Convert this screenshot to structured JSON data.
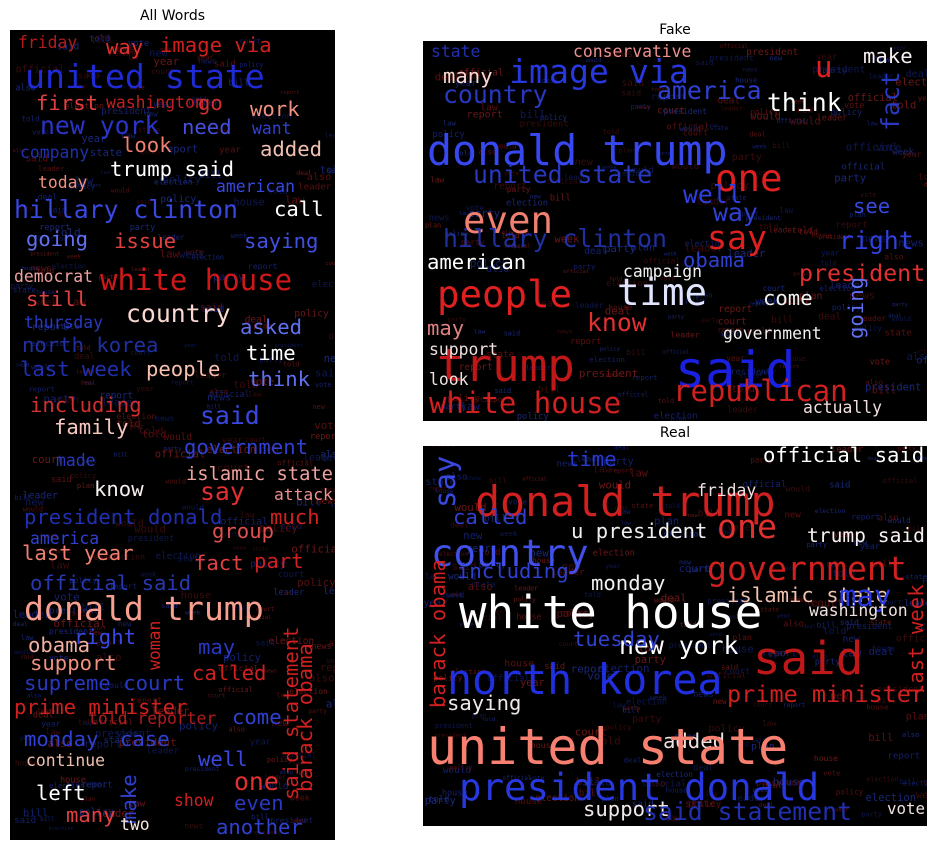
{
  "chart_data": [
    {
      "type": "wordcloud",
      "title": "All Words",
      "words": [
        {
          "text": "friday",
          "color": "#b01c1c",
          "weight": 2
        },
        {
          "text": "way",
          "color": "#e03030",
          "weight": 3
        },
        {
          "text": "image via",
          "color": "#d02020",
          "weight": 3
        },
        {
          "text": "united state",
          "color": "#1f2bd6",
          "weight": 6
        },
        {
          "text": "first",
          "color": "#e04040",
          "weight": 3
        },
        {
          "text": "washington",
          "color": "#c02020",
          "weight": 2
        },
        {
          "text": "go",
          "color": "#d03030",
          "weight": 3
        },
        {
          "text": "new york",
          "color": "#2a35c8",
          "weight": 4
        },
        {
          "text": "need",
          "color": "#4450e0",
          "weight": 3
        },
        {
          "text": "work",
          "color": "#f09080",
          "weight": 3
        },
        {
          "text": "want",
          "color": "#3040d0",
          "weight": 2
        },
        {
          "text": "company",
          "color": "#2030b0",
          "weight": 2
        },
        {
          "text": "look",
          "color": "#f08070",
          "weight": 3
        },
        {
          "text": "added",
          "color": "#f0c0b0",
          "weight": 3
        },
        {
          "text": "trump said",
          "color": "#ffffff",
          "weight": 3
        },
        {
          "text": "today",
          "color": "#f09080",
          "weight": 2
        },
        {
          "text": "american",
          "color": "#3848e0",
          "weight": 2
        },
        {
          "text": "hillary clinton",
          "color": "#3848e0",
          "weight": 4
        },
        {
          "text": "call",
          "color": "#ffffff",
          "weight": 3
        },
        {
          "text": "going",
          "color": "#6070f0",
          "weight": 3
        },
        {
          "text": "issue",
          "color": "#e04040",
          "weight": 3
        },
        {
          "text": "saying",
          "color": "#4050e0",
          "weight": 3
        },
        {
          "text": "democrat",
          "color": "#f0a0a0",
          "weight": 2
        },
        {
          "text": "white house",
          "color": "#d01818",
          "weight": 5
        },
        {
          "text": "still",
          "color": "#e04040",
          "weight": 3
        },
        {
          "text": "country",
          "color": "#f8d8d0",
          "weight": 4
        },
        {
          "text": "thursday",
          "color": "#2838c0",
          "weight": 2
        },
        {
          "text": "asked",
          "color": "#6070f0",
          "weight": 3
        },
        {
          "text": "north korea",
          "color": "#2030a0",
          "weight": 3
        },
        {
          "text": "time",
          "color": "#ffffff",
          "weight": 3
        },
        {
          "text": "people",
          "color": "#f8c0b0",
          "weight": 3
        },
        {
          "text": "think",
          "color": "#6070f0",
          "weight": 3
        },
        {
          "text": "last week",
          "color": "#2030b0",
          "weight": 3
        },
        {
          "text": "including",
          "color": "#d03030",
          "weight": 3
        },
        {
          "text": "said",
          "color": "#3848e0",
          "weight": 4
        },
        {
          "text": "family",
          "color": "#f8c8c0",
          "weight": 3
        },
        {
          "text": "government",
          "color": "#3040d0",
          "weight": 3
        },
        {
          "text": "made",
          "color": "#2838c0",
          "weight": 2
        },
        {
          "text": "islamic state",
          "color": "#f0a0a0",
          "weight": 3
        },
        {
          "text": "know",
          "color": "#f8f0f0",
          "weight": 3
        },
        {
          "text": "say",
          "color": "#e03030",
          "weight": 4
        },
        {
          "text": "attack",
          "color": "#f09090",
          "weight": 2
        },
        {
          "text": "president donald",
          "color": "#2030b0",
          "weight": 3
        },
        {
          "text": "group",
          "color": "#e05050",
          "weight": 3
        },
        {
          "text": "much",
          "color": "#d02020",
          "weight": 3
        },
        {
          "text": "america",
          "color": "#3040d0",
          "weight": 2
        },
        {
          "text": "last year",
          "color": "#f08070",
          "weight": 3
        },
        {
          "text": "fact",
          "color": "#e04040",
          "weight": 3
        },
        {
          "text": "part",
          "color": "#d02020",
          "weight": 3
        },
        {
          "text": "official said",
          "color": "#2838b0",
          "weight": 3
        },
        {
          "text": "donald trump",
          "color": "#f8a090",
          "weight": 6
        },
        {
          "text": "right",
          "color": "#3848e0",
          "weight": 3
        },
        {
          "text": "obama",
          "color": "#f0b0a0",
          "weight": 3
        },
        {
          "text": "may",
          "color": "#2838c0",
          "weight": 3
        },
        {
          "text": "support",
          "color": "#f09080",
          "weight": 3
        },
        {
          "text": "called",
          "color": "#d02020",
          "weight": 3
        },
        {
          "text": "supreme court",
          "color": "#2838c0",
          "weight": 3
        },
        {
          "text": "woman",
          "color": "#d02020",
          "weight": 2
        },
        {
          "text": "prime minister",
          "color": "#d02020",
          "weight": 3
        },
        {
          "text": "told reporter",
          "color": "#b01c1c",
          "weight": 2
        },
        {
          "text": "come",
          "color": "#3040d0",
          "weight": 3
        },
        {
          "text": "monday",
          "color": "#3040d0",
          "weight": 3
        },
        {
          "text": "case",
          "color": "#3040d0",
          "weight": 3
        },
        {
          "text": "barack obama",
          "color": "#d02020",
          "weight": 3
        },
        {
          "text": "continue",
          "color": "#f0c0b0",
          "weight": 2
        },
        {
          "text": "well",
          "color": "#3848e0",
          "weight": 3
        },
        {
          "text": "one",
          "color": "#e03030",
          "weight": 4
        },
        {
          "text": "left",
          "color": "#ffffff",
          "weight": 3
        },
        {
          "text": "make",
          "color": "#3040d0",
          "weight": 3
        },
        {
          "text": "show",
          "color": "#d02020",
          "weight": 2
        },
        {
          "text": "even",
          "color": "#2838c0",
          "weight": 3
        },
        {
          "text": "many",
          "color": "#e04040",
          "weight": 3
        },
        {
          "text": "two",
          "color": "#f8e8e0",
          "weight": 2
        },
        {
          "text": "another",
          "color": "#3040d0",
          "weight": 3
        },
        {
          "text": "said statement",
          "color": "#d02020",
          "weight": 3
        }
      ]
    },
    {
      "type": "wordcloud",
      "title": "Fake",
      "words": [
        {
          "text": "state",
          "color": "#2030b0",
          "weight": 2
        },
        {
          "text": "conservative",
          "color": "#f09090",
          "weight": 2
        },
        {
          "text": "make",
          "color": "#f8f0f0",
          "weight": 3
        },
        {
          "text": "image via",
          "color": "#2838e0",
          "weight": 6
        },
        {
          "text": "u",
          "color": "#e02020",
          "weight": 5
        },
        {
          "text": "many",
          "color": "#f8d8d0",
          "weight": 3
        },
        {
          "text": "country",
          "color": "#2838c0",
          "weight": 4
        },
        {
          "text": "america",
          "color": "#3040d0",
          "weight": 4
        },
        {
          "text": "think",
          "color": "#ffffff",
          "weight": 4
        },
        {
          "text": "fact",
          "color": "#2838c0",
          "weight": 4
        },
        {
          "text": "donald trump",
          "color": "#3848f0",
          "weight": 8
        },
        {
          "text": "one",
          "color": "#e02020",
          "weight": 7
        },
        {
          "text": "united state",
          "color": "#2838c0",
          "weight": 4
        },
        {
          "text": "well",
          "color": "#3040e0",
          "weight": 4
        },
        {
          "text": "even",
          "color": "#f08070",
          "weight": 7
        },
        {
          "text": "say",
          "color": "#e02020",
          "weight": 6
        },
        {
          "text": "way",
          "color": "#3040d0",
          "weight": 4
        },
        {
          "text": "see",
          "color": "#3848e0",
          "weight": 3
        },
        {
          "text": "hillary clinton",
          "color": "#2030a0",
          "weight": 4
        },
        {
          "text": "right",
          "color": "#3040e0",
          "weight": 4
        },
        {
          "text": "american",
          "color": "#ffffff",
          "weight": 3
        },
        {
          "text": "obama",
          "color": "#3040d0",
          "weight": 3
        },
        {
          "text": "president",
          "color": "#e03030",
          "weight": 4
        },
        {
          "text": "people",
          "color": "#e02020",
          "weight": 7
        },
        {
          "text": "time",
          "color": "#e0e4ff",
          "weight": 7
        },
        {
          "text": "come",
          "color": "#f0f0f0",
          "weight": 3
        },
        {
          "text": "going",
          "color": "#6070f0",
          "weight": 3
        },
        {
          "text": "know",
          "color": "#e03030",
          "weight": 4
        },
        {
          "text": "may",
          "color": "#e08080",
          "weight": 3
        },
        {
          "text": "trump",
          "color": "#c01818",
          "weight": 9
        },
        {
          "text": "said",
          "color": "#1a20e0",
          "weight": 10
        },
        {
          "text": "republican",
          "color": "#d02020",
          "weight": 5
        },
        {
          "text": "white house",
          "color": "#d02020",
          "weight": 5
        },
        {
          "text": "campaign",
          "color": "#f0f0f0",
          "weight": 2
        },
        {
          "text": "government",
          "color": "#f0f0f0",
          "weight": 2
        },
        {
          "text": "actually",
          "color": "#f0e0e0",
          "weight": 2
        },
        {
          "text": "support",
          "color": "#f0e0e0",
          "weight": 2
        },
        {
          "text": "look",
          "color": "#f0e0e0",
          "weight": 2
        }
      ]
    },
    {
      "type": "wordcloud",
      "title": "Real",
      "words": [
        {
          "text": "official said",
          "color": "#ffffff",
          "weight": 3
        },
        {
          "text": "say",
          "color": "#3848e0",
          "weight": 5
        },
        {
          "text": "donald trump",
          "color": "#d02020",
          "weight": 8
        },
        {
          "text": "time",
          "color": "#2838d0",
          "weight": 3
        },
        {
          "text": "one",
          "color": "#e03030",
          "weight": 6
        },
        {
          "text": "country",
          "color": "#4050e8",
          "weight": 7
        },
        {
          "text": "u president",
          "color": "#f0f0f0",
          "weight": 3
        },
        {
          "text": "trump said",
          "color": "#f8f0f0",
          "weight": 3
        },
        {
          "text": "government",
          "color": "#d02020",
          "weight": 6
        },
        {
          "text": "including",
          "color": "#3040d0",
          "weight": 3
        },
        {
          "text": "monday",
          "color": "#f0f0f0",
          "weight": 3
        },
        {
          "text": "white house",
          "color": "#ffffff",
          "weight": 9
        },
        {
          "text": "islamic state",
          "color": "#f0c0b0",
          "weight": 3
        },
        {
          "text": "may",
          "color": "#2838e0",
          "weight": 5
        },
        {
          "text": "new york",
          "color": "#ffffff",
          "weight": 4
        },
        {
          "text": "said",
          "color": "#c01818",
          "weight": 9
        },
        {
          "text": "north korea",
          "color": "#2030e0",
          "weight": 8
        },
        {
          "text": "tuesday",
          "color": "#3040d0",
          "weight": 3
        },
        {
          "text": "prime minister",
          "color": "#d02020",
          "weight": 4
        },
        {
          "text": "saying",
          "color": "#f0e8e8",
          "weight": 3
        },
        {
          "text": "added",
          "color": "#f0e0e0",
          "weight": 3
        },
        {
          "text": "united state",
          "color": "#f88070",
          "weight": 10
        },
        {
          "text": "president donald",
          "color": "#2838e0",
          "weight": 7
        },
        {
          "text": "support",
          "color": "#f0e8e8",
          "weight": 3
        },
        {
          "text": "said statement",
          "color": "#2030b0",
          "weight": 4
        },
        {
          "text": "vote",
          "color": "#f0e0e0",
          "weight": 2
        },
        {
          "text": "barack obama",
          "color": "#d02020",
          "weight": 3
        },
        {
          "text": "last week",
          "color": "#d02020",
          "weight": 3
        },
        {
          "text": "washington",
          "color": "#f0e0e0",
          "weight": 2
        },
        {
          "text": "friday",
          "color": "#f0e0e0",
          "weight": 2
        },
        {
          "text": "called",
          "color": "#3040d0",
          "weight": 3
        }
      ]
    }
  ]
}
